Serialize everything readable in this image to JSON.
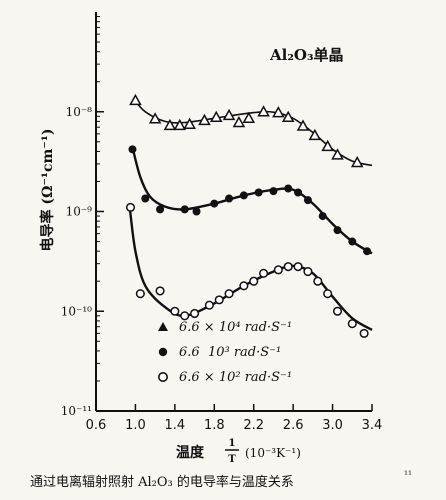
{
  "chart_data": {
    "type": "scatter",
    "title": "Al₂O₃单晶",
    "ylabel": "电导率 (Ω⁻¹cm⁻¹)",
    "xlabel": {
      "prefix": "温度",
      "fraction_num": "1",
      "fraction_den": "T",
      "units": "(10⁻³K⁻¹)"
    },
    "caption": "通过电离辐射照射 Al₂O₃ 的电导率与温度关系",
    "caption_ref": "¹¹",
    "x_ticks": [
      "0.6",
      "1.0",
      "1.4",
      "1.8",
      "2.2",
      "2.6",
      "3.0",
      "3.4"
    ],
    "xlim": [
      0.6,
      3.4
    ],
    "y_scale": "log",
    "ylim": [
      1e-11,
      1e-07
    ],
    "y_ticks": [
      {
        "value": 1e-08,
        "label": "10⁻⁸"
      },
      {
        "value": 1e-09,
        "label": "10⁻⁹"
      },
      {
        "value": 1e-10,
        "label": "10⁻¹⁰"
      },
      {
        "value": 1e-11,
        "label": "10⁻¹¹"
      }
    ],
    "series": [
      {
        "name": "6.6 × 10⁴ rad·S⁻¹",
        "marker": "triangle",
        "points": [
          [
            1.0,
            1.3e-08
          ],
          [
            1.2,
            8.5e-09
          ],
          [
            1.35,
            7.3e-09
          ],
          [
            1.45,
            7.3e-09
          ],
          [
            1.55,
            7.5e-09
          ],
          [
            1.7,
            8.2e-09
          ],
          [
            1.82,
            8.8e-09
          ],
          [
            1.95,
            9.2e-09
          ],
          [
            2.05,
            7.8e-09
          ],
          [
            2.15,
            8.6e-09
          ],
          [
            2.3,
            1e-08
          ],
          [
            2.45,
            9.8e-09
          ],
          [
            2.55,
            8.8e-09
          ],
          [
            2.7,
            7.2e-09
          ],
          [
            2.82,
            5.8e-09
          ],
          [
            2.95,
            4.5e-09
          ],
          [
            3.05,
            3.7e-09
          ],
          [
            3.25,
            3.1e-09
          ]
        ],
        "curve": [
          [
            0.98,
            1.35e-08
          ],
          [
            1.1,
            1e-08
          ],
          [
            1.3,
            8e-09
          ],
          [
            1.5,
            7.8e-09
          ],
          [
            1.8,
            8.6e-09
          ],
          [
            2.2,
            9.8e-09
          ],
          [
            2.4,
            9.9e-09
          ],
          [
            2.6,
            8.6e-09
          ],
          [
            2.8,
            6.2e-09
          ],
          [
            3.0,
            4.2e-09
          ],
          [
            3.2,
            3.2e-09
          ],
          [
            3.4,
            2.9e-09
          ]
        ]
      },
      {
        "name": "6.6  10³ rad·S⁻¹",
        "marker": "circle",
        "points": [
          [
            0.97,
            4.2e-09
          ],
          [
            1.1,
            1.35e-09
          ],
          [
            1.25,
            1.05e-09
          ],
          [
            1.5,
            1.05e-09
          ],
          [
            1.62,
            1e-09
          ],
          [
            1.8,
            1.2e-09
          ],
          [
            1.95,
            1.35e-09
          ],
          [
            2.1,
            1.45e-09
          ],
          [
            2.25,
            1.55e-09
          ],
          [
            2.4,
            1.6e-09
          ],
          [
            2.55,
            1.7e-09
          ],
          [
            2.65,
            1.55e-09
          ],
          [
            2.75,
            1.3e-09
          ],
          [
            2.9,
            9e-10
          ],
          [
            3.05,
            6.5e-10
          ],
          [
            3.2,
            5e-10
          ],
          [
            3.35,
            4e-10
          ]
        ],
        "curve": [
          [
            0.97,
            4.4e-09
          ],
          [
            1.05,
            2.2e-09
          ],
          [
            1.15,
            1.4e-09
          ],
          [
            1.3,
            1.12e-09
          ],
          [
            1.5,
            1.05e-09
          ],
          [
            1.8,
            1.2e-09
          ],
          [
            2.1,
            1.45e-09
          ],
          [
            2.4,
            1.65e-09
          ],
          [
            2.6,
            1.65e-09
          ],
          [
            2.8,
            1.2e-09
          ],
          [
            3.0,
            7.5e-10
          ],
          [
            3.2,
            5e-10
          ],
          [
            3.4,
            3.8e-10
          ]
        ]
      },
      {
        "name": "6.6 × 10² rad·S⁻¹",
        "marker": "open-circle",
        "points": [
          [
            0.95,
            1.1e-09
          ],
          [
            1.05,
            1.5e-10
          ],
          [
            1.25,
            1.6e-10
          ],
          [
            1.4,
            1e-10
          ],
          [
            1.5,
            9e-11
          ],
          [
            1.6,
            9.5e-11
          ],
          [
            1.75,
            1.15e-10
          ],
          [
            1.85,
            1.3e-10
          ],
          [
            1.95,
            1.5e-10
          ],
          [
            2.1,
            1.8e-10
          ],
          [
            2.2,
            2e-10
          ],
          [
            2.3,
            2.4e-10
          ],
          [
            2.45,
            2.6e-10
          ],
          [
            2.55,
            2.8e-10
          ],
          [
            2.65,
            2.8e-10
          ],
          [
            2.75,
            2.5e-10
          ],
          [
            2.85,
            2e-10
          ],
          [
            2.95,
            1.5e-10
          ],
          [
            3.05,
            1e-10
          ],
          [
            3.2,
            7.5e-11
          ],
          [
            3.32,
            6e-11
          ]
        ],
        "curve": [
          [
            0.94,
            1.15e-09
          ],
          [
            1.0,
            4e-10
          ],
          [
            1.1,
            1.8e-10
          ],
          [
            1.3,
            1.1e-10
          ],
          [
            1.5,
            9e-11
          ],
          [
            1.8,
            1.2e-10
          ],
          [
            2.1,
            1.8e-10
          ],
          [
            2.4,
            2.5e-10
          ],
          [
            2.6,
            2.85e-10
          ],
          [
            2.8,
            2.4e-10
          ],
          [
            3.0,
            1.4e-10
          ],
          [
            3.2,
            8.5e-11
          ],
          [
            3.4,
            6.5e-11
          ]
        ]
      }
    ],
    "legend_placement": "bottom-left"
  }
}
